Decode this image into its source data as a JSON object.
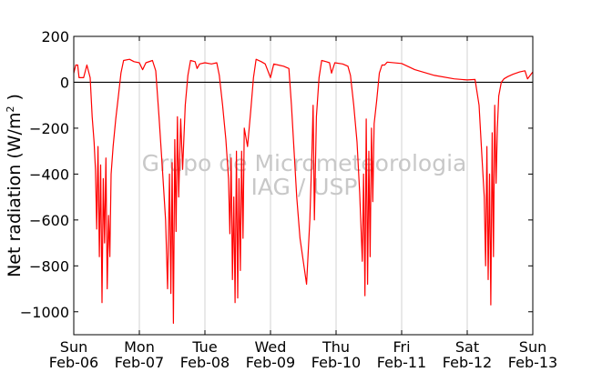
{
  "chart_data": {
    "type": "line",
    "title": "",
    "ylabel_main": "Net radiation (W/m",
    "ylabel_sup": "2",
    "ylabel_end": " )",
    "watermark_line1": "Grupo de Micrometeorologia",
    "watermark_line2": "IAG / USP",
    "ylim": [
      -1100,
      200
    ],
    "y_ticks": [
      200,
      0,
      -200,
      -400,
      -600,
      -800,
      -1000
    ],
    "y_tick_labels": [
      "200",
      "0",
      "−200",
      "−400",
      "−600",
      "−800",
      "−1000"
    ],
    "xlim": [
      0,
      7
    ],
    "x_ticks": [
      {
        "day": "Sun",
        "date": "Feb-06"
      },
      {
        "day": "Mon",
        "date": "Feb-07"
      },
      {
        "day": "Tue",
        "date": "Feb-08"
      },
      {
        "day": "Wed",
        "date": "Feb-09"
      },
      {
        "day": "Thu",
        "date": "Feb-10"
      },
      {
        "day": "Fri",
        "date": "Feb-11"
      },
      {
        "day": "Sat",
        "date": "Feb-12"
      },
      {
        "day": "Sun",
        "date": "Feb-13"
      }
    ],
    "grid": "vertical",
    "zero_line": true,
    "series": [
      {
        "color": "#ff0000",
        "points": [
          [
            0.0,
            40
          ],
          [
            0.03,
            75
          ],
          [
            0.06,
            75
          ],
          [
            0.08,
            20
          ],
          [
            0.15,
            20
          ],
          [
            0.2,
            75
          ],
          [
            0.25,
            20
          ],
          [
            0.28,
            -150
          ],
          [
            0.31,
            -260
          ],
          [
            0.33,
            -380
          ],
          [
            0.35,
            -640
          ],
          [
            0.37,
            -280
          ],
          [
            0.39,
            -760
          ],
          [
            0.41,
            -360
          ],
          [
            0.43,
            -960
          ],
          [
            0.45,
            -420
          ],
          [
            0.47,
            -700
          ],
          [
            0.49,
            -330
          ],
          [
            0.51,
            -900
          ],
          [
            0.53,
            -580
          ],
          [
            0.55,
            -760
          ],
          [
            0.57,
            -400
          ],
          [
            0.6,
            -280
          ],
          [
            0.64,
            -160
          ],
          [
            0.68,
            -60
          ],
          [
            0.72,
            40
          ],
          [
            0.76,
            95
          ],
          [
            0.85,
            100
          ],
          [
            0.92,
            90
          ],
          [
            1.0,
            85
          ],
          [
            1.05,
            55
          ],
          [
            1.1,
            85
          ],
          [
            1.2,
            95
          ],
          [
            1.25,
            50
          ],
          [
            1.3,
            -150
          ],
          [
            1.35,
            -370
          ],
          [
            1.4,
            -600
          ],
          [
            1.43,
            -900
          ],
          [
            1.46,
            -400
          ],
          [
            1.48,
            -920
          ],
          [
            1.5,
            -350
          ],
          [
            1.52,
            -1050
          ],
          [
            1.54,
            -250
          ],
          [
            1.56,
            -650
          ],
          [
            1.58,
            -150
          ],
          [
            1.6,
            -500
          ],
          [
            1.63,
            -160
          ],
          [
            1.66,
            -380
          ],
          [
            1.7,
            -100
          ],
          [
            1.74,
            30
          ],
          [
            1.78,
            95
          ],
          [
            1.85,
            90
          ],
          [
            1.88,
            60
          ],
          [
            1.92,
            80
          ],
          [
            2.0,
            85
          ],
          [
            2.1,
            80
          ],
          [
            2.18,
            85
          ],
          [
            2.22,
            30
          ],
          [
            2.27,
            -100
          ],
          [
            2.32,
            -250
          ],
          [
            2.36,
            -420
          ],
          [
            2.38,
            -660
          ],
          [
            2.4,
            -330
          ],
          [
            2.42,
            -860
          ],
          [
            2.44,
            -500
          ],
          [
            2.46,
            -960
          ],
          [
            2.48,
            -300
          ],
          [
            2.5,
            -940
          ],
          [
            2.52,
            -420
          ],
          [
            2.54,
            -820
          ],
          [
            2.56,
            -300
          ],
          [
            2.58,
            -680
          ],
          [
            2.6,
            -200
          ],
          [
            2.65,
            -280
          ],
          [
            2.7,
            -120
          ],
          [
            2.74,
            20
          ],
          [
            2.78,
            100
          ],
          [
            2.86,
            90
          ],
          [
            2.92,
            80
          ],
          [
            3.0,
            20
          ],
          [
            3.05,
            80
          ],
          [
            3.12,
            75
          ],
          [
            3.2,
            70
          ],
          [
            3.28,
            60
          ],
          [
            3.32,
            -100
          ],
          [
            3.36,
            -300
          ],
          [
            3.4,
            -500
          ],
          [
            3.45,
            -680
          ],
          [
            3.5,
            -780
          ],
          [
            3.55,
            -880
          ],
          [
            3.6,
            -600
          ],
          [
            3.63,
            -320
          ],
          [
            3.65,
            -100
          ],
          [
            3.67,
            -600
          ],
          [
            3.7,
            -150
          ],
          [
            3.74,
            20
          ],
          [
            3.78,
            95
          ],
          [
            3.85,
            90
          ],
          [
            3.9,
            85
          ],
          [
            3.93,
            40
          ],
          [
            3.98,
            85
          ],
          [
            4.1,
            80
          ],
          [
            4.18,
            70
          ],
          [
            4.22,
            30
          ],
          [
            4.27,
            -100
          ],
          [
            4.32,
            -260
          ],
          [
            4.36,
            -480
          ],
          [
            4.4,
            -780
          ],
          [
            4.42,
            -400
          ],
          [
            4.44,
            -930
          ],
          [
            4.46,
            -160
          ],
          [
            4.48,
            -880
          ],
          [
            4.5,
            -300
          ],
          [
            4.52,
            -760
          ],
          [
            4.54,
            -200
          ],
          [
            4.56,
            -520
          ],
          [
            4.58,
            -180
          ],
          [
            4.62,
            -80
          ],
          [
            4.66,
            40
          ],
          [
            4.7,
            75
          ],
          [
            4.74,
            75
          ],
          [
            4.78,
            88
          ],
          [
            5.0,
            82
          ],
          [
            5.2,
            55
          ],
          [
            5.5,
            30
          ],
          [
            5.8,
            15
          ],
          [
            6.0,
            10
          ],
          [
            6.12,
            12
          ],
          [
            6.18,
            -100
          ],
          [
            6.22,
            -300
          ],
          [
            6.26,
            -500
          ],
          [
            6.28,
            -800
          ],
          [
            6.3,
            -280
          ],
          [
            6.32,
            -860
          ],
          [
            6.34,
            -400
          ],
          [
            6.36,
            -970
          ],
          [
            6.38,
            -220
          ],
          [
            6.4,
            -760
          ],
          [
            6.42,
            -100
          ],
          [
            6.44,
            -440
          ],
          [
            6.46,
            -200
          ],
          [
            6.48,
            -60
          ],
          [
            6.52,
            0
          ],
          [
            6.56,
            15
          ],
          [
            6.62,
            25
          ],
          [
            6.7,
            35
          ],
          [
            6.8,
            45
          ],
          [
            6.88,
            50
          ],
          [
            6.92,
            15
          ],
          [
            6.96,
            30
          ],
          [
            7.0,
            45
          ]
        ]
      }
    ]
  }
}
